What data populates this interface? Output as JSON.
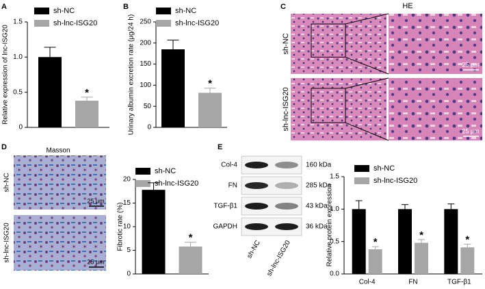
{
  "panels": {
    "letters": [
      "A",
      "B",
      "C",
      "D",
      "E"
    ],
    "he": {
      "title": "HE",
      "rows": [
        "sh-NC",
        "sh-lnc-ISG20"
      ],
      "scale": [
        "25 μm",
        "25 μm"
      ]
    },
    "masson": {
      "title": "Masson",
      "rows": [
        "sh-NC",
        "sh-lnc-ISG20"
      ],
      "scale": [
        "25 μm",
        "25 μm"
      ]
    },
    "blot": {
      "proteins": [
        "Col-4",
        "FN",
        "TGF-β1",
        "GAPDH"
      ],
      "sizes": [
        "160 kDa",
        "285 kDa",
        "43 kDa",
        "36 kDa"
      ],
      "lanes": [
        "sh-NC",
        "sh-lnc-ISG20"
      ]
    }
  },
  "chart_data": [
    {
      "type": "bar",
      "ylabel": "Relative expression of lnc-ISG20",
      "categories": [
        null
      ],
      "series": [
        {
          "name": "sh-NC",
          "color": "#000000",
          "values": [
            1.0
          ],
          "errors": [
            0.14
          ]
        },
        {
          "name": "sh-lnc-ISG20",
          "color": "#a6a6a6",
          "values": [
            0.38
          ],
          "errors": [
            0.05
          ]
        }
      ],
      "annotations": [
        "*"
      ],
      "ylim": [
        0,
        1.5
      ],
      "yticks": [
        0,
        0.5,
        {
          "value": 1,
          "label": "1.0"
        },
        1.5
      ]
    },
    {
      "type": "bar",
      "ylabel": "Urinary albumin excretion rate (μg/24 h)",
      "categories": [
        null
      ],
      "series": [
        {
          "name": "sh-NC",
          "color": "#000000",
          "values": [
            185
          ],
          "errors": [
            22
          ]
        },
        {
          "name": "sh-lnc-ISG20",
          "color": "#a6a6a6",
          "values": [
            82
          ],
          "errors": [
            11
          ]
        }
      ],
      "annotations": [
        "*"
      ],
      "ylim": [
        0,
        250
      ],
      "yticks": [
        0,
        50,
        100,
        150,
        200,
        250
      ]
    },
    {
      "type": "bar",
      "ylabel": "Fibrotic rate (%)",
      "categories": [
        null
      ],
      "series": [
        {
          "name": "sh-NC",
          "color": "#000000",
          "values": [
            17.8
          ],
          "errors": [
            1.5
          ]
        },
        {
          "name": "sh-lnc-ISG20",
          "color": "#a6a6a6",
          "values": [
            5.8
          ],
          "errors": [
            0.9
          ]
        }
      ],
      "annotations": [
        "*"
      ],
      "ylim": [
        0,
        20
      ],
      "yticks": [
        0,
        5,
        10,
        15,
        20
      ]
    },
    {
      "type": "bar",
      "ylabel": "Relative protein expression",
      "categories": [
        "Col-4",
        "FN",
        "TGF-β1"
      ],
      "series": [
        {
          "name": "sh-NC",
          "color": "#000000",
          "values": [
            1.0,
            1.0,
            1.0
          ],
          "errors": [
            0.13,
            0.07,
            0.08
          ]
        },
        {
          "name": "sh-lnc-ISG20",
          "color": "#a6a6a6",
          "values": [
            0.38,
            0.48,
            0.41
          ],
          "errors": [
            0.04,
            0.05,
            0.05
          ]
        }
      ],
      "annotations": [
        "*",
        "*",
        "*"
      ],
      "ylim": [
        0,
        1.5
      ],
      "yticks": [
        {
          "value": 0,
          "label": "0.0"
        },
        0.5,
        {
          "value": 1,
          "label": "1.0"
        },
        1.5
      ]
    }
  ]
}
